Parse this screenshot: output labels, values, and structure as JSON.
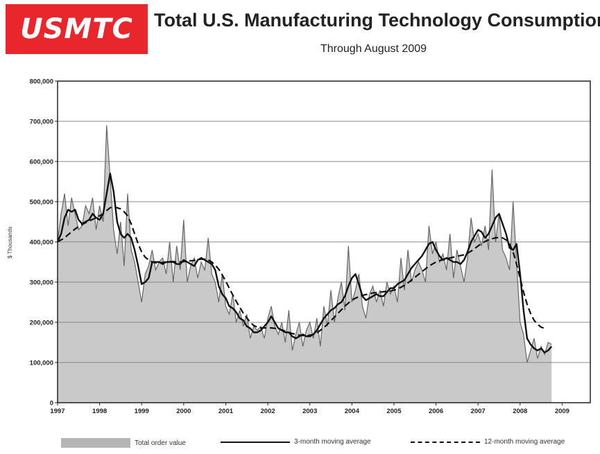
{
  "logo": {
    "text": "USMTC"
  },
  "title": "Total U.S. Manufacturing Technology Consumption",
  "subtitle": "Through August 2009",
  "chart_data": {
    "type": "area",
    "ylabel": "$ Thousands",
    "xlabel": "",
    "ylim": [
      0,
      800000
    ],
    "xlim": [
      1997.0,
      2009.67
    ],
    "y_ticks": [
      "800,000",
      "700,000",
      "600,000",
      "500,000",
      "400,000",
      "300,000",
      "200,000",
      "100,000",
      "0"
    ],
    "x_ticks": [
      "1997",
      "1998",
      "1999",
      "2000",
      "2001",
      "2002",
      "2003",
      "2004",
      "2005",
      "2006",
      "2007",
      "2008",
      "2009"
    ],
    "grid": "horizontal",
    "legend_position": "bottom",
    "colors": {
      "area_fill": "#c9c9c9",
      "area_line": "#666666",
      "ma3": "#111111",
      "ma12": "#111111"
    },
    "series": [
      {
        "name": "Total order value",
        "style": "area",
        "x_start": 1997.0,
        "step": 0.0833333,
        "values": [
          400000,
          470000,
          520000,
          440000,
          510000,
          470000,
          430000,
          440000,
          490000,
          470000,
          510000,
          430000,
          490000,
          450000,
          690000,
          560000,
          430000,
          370000,
          450000,
          340000,
          520000,
          380000,
          350000,
          300000,
          250000,
          320000,
          340000,
          380000,
          330000,
          350000,
          360000,
          320000,
          400000,
          300000,
          390000,
          330000,
          455000,
          300000,
          340000,
          360000,
          310000,
          350000,
          330000,
          410000,
          320000,
          300000,
          250000,
          320000,
          240000,
          220000,
          270000,
          200000,
          230000,
          190000,
          220000,
          160000,
          190000,
          180000,
          190000,
          160000,
          210000,
          240000,
          190000,
          170000,
          200000,
          150000,
          230000,
          130000,
          170000,
          200000,
          140000,
          180000,
          200000,
          160000,
          210000,
          140000,
          240000,
          190000,
          280000,
          200000,
          260000,
          300000,
          230000,
          390000,
          250000,
          280000,
          320000,
          240000,
          210000,
          270000,
          290000,
          250000,
          280000,
          240000,
          300000,
          270000,
          290000,
          250000,
          360000,
          280000,
          380000,
          300000,
          330000,
          350000,
          330000,
          300000,
          440000,
          370000,
          400000,
          350000,
          370000,
          330000,
          420000,
          310000,
          380000,
          340000,
          300000,
          360000,
          460000,
          400000,
          420000,
          390000,
          440000,
          380000,
          580000,
          400000,
          470000,
          380000,
          360000,
          330000,
          500000,
          350000,
          200000,
          170000,
          100000,
          130000,
          160000,
          110000,
          140000,
          120000,
          150000,
          145000
        ]
      },
      {
        "name": "3-month moving average",
        "style": "solid",
        "x_start": 1997.0,
        "step": 0.0833333,
        "values": [
          400000,
          420000,
          460000,
          480000,
          475000,
          480000,
          455000,
          445000,
          450000,
          455000,
          470000,
          460000,
          455000,
          470000,
          520000,
          570000,
          525000,
          450000,
          420000,
          410000,
          420000,
          410000,
          380000,
          340000,
          295000,
          300000,
          310000,
          350000,
          350000,
          350000,
          345000,
          350000,
          350000,
          350000,
          345000,
          345000,
          355000,
          350000,
          345000,
          340000,
          355000,
          360000,
          355000,
          350000,
          345000,
          330000,
          290000,
          270000,
          260000,
          240000,
          235000,
          225000,
          210000,
          205000,
          190000,
          185000,
          175000,
          175000,
          180000,
          190000,
          200000,
          215000,
          200000,
          185000,
          180000,
          175000,
          175000,
          165000,
          160000,
          165000,
          170000,
          165000,
          165000,
          170000,
          180000,
          195000,
          210000,
          220000,
          230000,
          235000,
          245000,
          250000,
          265000,
          290000,
          310000,
          320000,
          295000,
          265000,
          255000,
          260000,
          265000,
          270000,
          265000,
          265000,
          275000,
          285000,
          285000,
          295000,
          300000,
          305000,
          320000,
          335000,
          345000,
          355000,
          365000,
          380000,
          395000,
          400000,
          380000,
          365000,
          355000,
          360000,
          355000,
          350000,
          350000,
          345000,
          355000,
          375000,
          400000,
          415000,
          430000,
          425000,
          410000,
          420000,
          440000,
          460000,
          470000,
          445000,
          420000,
          385000,
          380000,
          395000,
          320000,
          230000,
          160000,
          145000,
          135000,
          130000,
          135000,
          125000,
          130000,
          140000
        ]
      },
      {
        "name": "12-month moving average",
        "style": "dashed",
        "x_start": 1997.0,
        "step": 0.0833333,
        "values": [
          400000,
          405000,
          410000,
          418000,
          425000,
          432000,
          438000,
          443000,
          448000,
          452000,
          456000,
          460000,
          465000,
          470000,
          478000,
          485000,
          487000,
          485000,
          482000,
          475000,
          465000,
          445000,
          420000,
          395000,
          375000,
          362000,
          355000,
          350000,
          348000,
          348000,
          349000,
          350000,
          351000,
          351000,
          350000,
          350000,
          351000,
          352000,
          353000,
          354000,
          356000,
          357000,
          357000,
          355000,
          350000,
          342000,
          332000,
          318000,
          302000,
          285000,
          268000,
          252000,
          237000,
          223000,
          211000,
          200000,
          192000,
          188000,
          186000,
          186000,
          186000,
          186000,
          185000,
          183000,
          181000,
          178000,
          175000,
          172000,
          170000,
          168000,
          167000,
          167000,
          168000,
          170000,
          174000,
          180000,
          187000,
          195000,
          204000,
          213000,
          222000,
          231000,
          240000,
          248000,
          255000,
          260000,
          264000,
          267000,
          269000,
          271000,
          273000,
          274000,
          275000,
          276000,
          277000,
          278000,
          280000,
          283000,
          287000,
          292000,
          298000,
          305000,
          312000,
          319000,
          326000,
          333000,
          340000,
          345000,
          350000,
          353000,
          356000,
          358000,
          360000,
          362000,
          364000,
          366000,
          368000,
          372000,
          377000,
          383000,
          390000,
          396000,
          401000,
          405000,
          408000,
          410000,
          411000,
          410000,
          405000,
          395000,
          375000,
          345000,
          310000,
          275000,
          245000,
          222000,
          205000,
          195000,
          188000,
          185000
        ]
      }
    ]
  }
}
